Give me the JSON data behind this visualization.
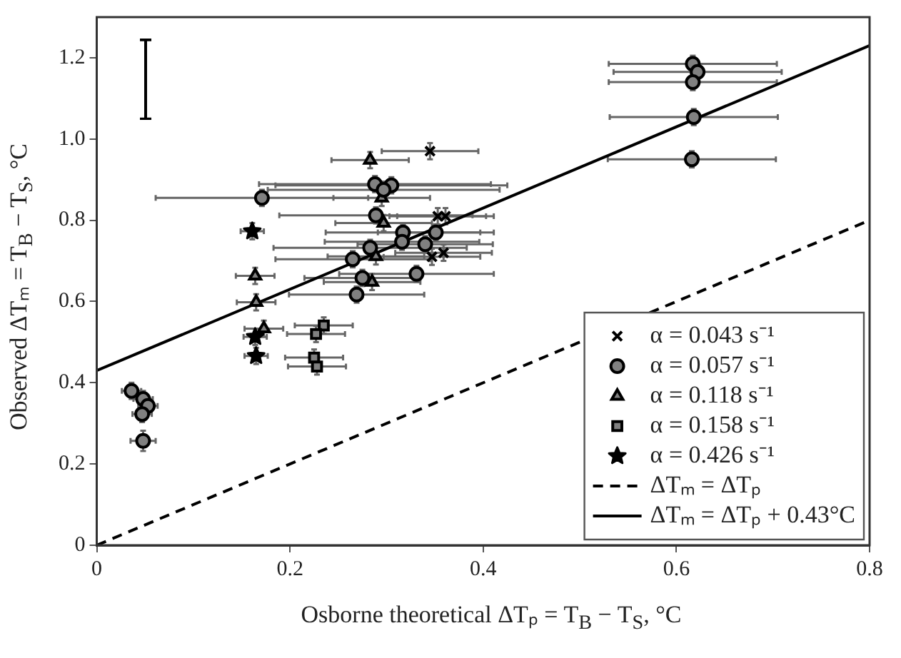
{
  "chart_data": {
    "type": "scatter",
    "xlabel": "Osborne theoretical ΔTₚ = T$_{B}$ − T$_{S}$, °C",
    "ylabel": "Observed ΔTₘ = T$_{B}$ − T$_{S}$, °C",
    "xlim": [
      0,
      0.8
    ],
    "xticks": [
      0,
      0.2,
      0.4,
      0.6,
      0.8
    ],
    "ylim": [
      0,
      1.3
    ],
    "yticks": [
      0,
      0.2,
      0.4,
      0.6,
      0.8,
      {
        "value": 1,
        "label": "1.0"
      },
      1.2
    ],
    "grid": false,
    "legend": "bottom right",
    "series": [
      {
        "name": "α = 0.043 s⁻¹",
        "type": "scatter",
        "marker": "cross",
        "color": "#000000",
        "x": [
          0.345,
          0.353,
          0.361,
          0.347,
          0.359
        ],
        "values": [
          0.97,
          0.81,
          0.81,
          0.71,
          0.72
        ],
        "errors": [
          0.02,
          0.02,
          0.02,
          0.02,
          0.02
        ],
        "xerrors": [
          0.05,
          0.05,
          0.05,
          0.05,
          0.05
        ]
      },
      {
        "name": "α = 0.057 s⁻¹",
        "type": "scatter",
        "marker": "circle",
        "color": "#808080",
        "x": [
          0.171,
          0.288,
          0.305,
          0.297,
          0.289,
          0.317,
          0.351,
          0.316,
          0.34,
          0.283,
          0.265,
          0.275,
          0.331,
          0.269,
          0.617,
          0.622,
          0.617,
          0.618,
          0.616,
          0.036,
          0.048,
          0.053,
          0.047,
          0.048
        ],
        "values": [
          0.855,
          0.889,
          0.886,
          0.875,
          0.812,
          0.77,
          0.77,
          0.747,
          0.741,
          0.732,
          0.704,
          0.658,
          0.668,
          0.617,
          1.185,
          1.165,
          1.14,
          1.054,
          0.95,
          0.38,
          0.36,
          0.343,
          0.323,
          0.257
        ],
        "errors": [
          0.02,
          0.02,
          0.02,
          0.02,
          0.02,
          0.02,
          0.02,
          0.02,
          0.02,
          0.02,
          0.02,
          0.02,
          0.02,
          0.02,
          0.02,
          0.02,
          0.02,
          0.02,
          0.02,
          0.02,
          0.02,
          0.02,
          0.02,
          0.025
        ],
        "xerrors": [
          0.11,
          0.12,
          0.12,
          0.12,
          0.1,
          0.08,
          0.06,
          0.08,
          0.07,
          0.1,
          0.08,
          0.06,
          0.08,
          0.07,
          0.087,
          0.087,
          0.087,
          0.087,
          0.087,
          0.01,
          0.01,
          0.01,
          0.01,
          0.013
        ]
      },
      {
        "name": "α = 0.118 s⁻¹",
        "type": "scatter",
        "marker": "triangle",
        "color": "#808080",
        "x": [
          0.283,
          0.295,
          0.297,
          0.289,
          0.285,
          0.164,
          0.165,
          0.173
        ],
        "values": [
          0.948,
          0.855,
          0.793,
          0.711,
          0.648,
          0.663,
          0.598,
          0.533
        ],
        "errors": [
          0.02,
          0.02,
          0.02,
          0.02,
          0.02,
          0.02,
          0.02,
          0.02
        ],
        "xerrors": [
          0.04,
          0.05,
          0.05,
          0.05,
          0.05,
          0.02,
          0.02,
          0.02
        ]
      },
      {
        "name": "α = 0.158 s⁻¹",
        "type": "scatter",
        "marker": "square",
        "color": "#808080",
        "x": [
          0.235,
          0.227,
          0.225,
          0.228
        ],
        "values": [
          0.541,
          0.52,
          0.462,
          0.44
        ],
        "errors": [
          0.02,
          0.02,
          0.02,
          0.02
        ],
        "xerrors": [
          0.03,
          0.03,
          0.03,
          0.03
        ]
      },
      {
        "name": "α = 0.426 s⁻¹",
        "type": "scatter",
        "marker": "star",
        "color": "#000000",
        "x": [
          0.161,
          0.164,
          0.165
        ],
        "values": [
          0.773,
          0.513,
          0.466
        ],
        "errors": [
          0.02,
          0.02,
          0.02
        ],
        "xerrors": [
          0.012,
          0.012,
          0.012
        ]
      },
      {
        "name": "ΔTₘ = ΔTₚ",
        "type": "line",
        "marker": "none",
        "line_style": "dashed",
        "color": "#000000",
        "x": [
          0,
          0.8
        ],
        "values": [
          0,
          0.8
        ]
      },
      {
        "name": "ΔTₘ = ΔTₚ + 0.43°C",
        "type": "line",
        "marker": "none",
        "line_style": "solid",
        "color": "#000000",
        "x": [
          0,
          0.8
        ],
        "values": [
          0.43,
          1.23
        ]
      }
    ]
  }
}
